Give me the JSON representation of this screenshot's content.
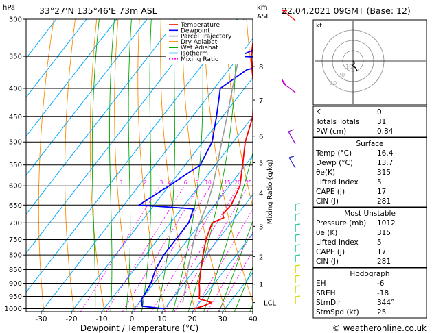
{
  "header": {
    "location": "33°27'N  135°46'E  73m  ASL",
    "datetime": "22.04.2021  09GMT  (Base: 12)",
    "left_unit": "hPa",
    "right_unit_km": "km",
    "right_unit_asl": "ASL"
  },
  "footer": {
    "copyright": "© weatheronline.co.uk"
  },
  "legend": [
    {
      "label": "Temperature",
      "color": "#ff0000",
      "dash": ""
    },
    {
      "label": "Dewpoint",
      "color": "#0000ff",
      "dash": ""
    },
    {
      "label": "Parcel Trajectory",
      "color": "#999999",
      "dash": ""
    },
    {
      "label": "Dry Adiabat",
      "color": "#ff8c00",
      "dash": ""
    },
    {
      "label": "Wet Adiabat",
      "color": "#00aa00",
      "dash": ""
    },
    {
      "label": "Isotherm",
      "color": "#00aaff",
      "dash": ""
    },
    {
      "label": "Mixing Ratio",
      "color": "#ff00ff",
      "dash": "2,2"
    }
  ],
  "chart_data": {
    "type": "line",
    "title": "",
    "xlabel": "Dewpoint / Temperature (°C)",
    "ylabel_left": "hPa",
    "ylabel_right": "Mixing Ratio (g/kg)",
    "xlim": [
      -35,
      40
    ],
    "ylim": [
      1000,
      300
    ],
    "x_ticks": [
      -30,
      -20,
      -10,
      0,
      10,
      20,
      30,
      40
    ],
    "pressure_levels": [
      300,
      350,
      400,
      450,
      500,
      550,
      600,
      650,
      700,
      750,
      800,
      850,
      900,
      950,
      1000
    ],
    "altitude_km_ticks": [
      {
        "label": "8",
        "p": 365
      },
      {
        "label": "7",
        "p": 420
      },
      {
        "label": "6",
        "p": 488
      },
      {
        "label": "5",
        "p": 545
      },
      {
        "label": "4",
        "p": 618
      },
      {
        "label": "3",
        "p": 710
      },
      {
        "label": "2",
        "p": 805
      },
      {
        "label": "1",
        "p": 903
      },
      {
        "label": "LCL",
        "p": 975
      }
    ],
    "mixing_ratio_labels": [
      "1",
      "2",
      "3",
      "4",
      "6",
      "8",
      "10",
      "15",
      "20",
      "25"
    ],
    "series": [
      {
        "name": "Temperature",
        "color": "#ff0000",
        "points": [
          [
            1000,
            20.0
          ],
          [
            990,
            22.0
          ],
          [
            975,
            24.0
          ],
          [
            960,
            19.0
          ],
          [
            925,
            16.8
          ],
          [
            900,
            15.0
          ],
          [
            850,
            12.0
          ],
          [
            800,
            9.0
          ],
          [
            750,
            6.0
          ],
          [
            700,
            3.8
          ],
          [
            685,
            6.3
          ],
          [
            675,
            5.0
          ],
          [
            650,
            5.5
          ],
          [
            600,
            3.5
          ],
          [
            550,
            -1.0
          ],
          [
            500,
            -6.0
          ],
          [
            450,
            -10.0
          ],
          [
            400,
            -17.0
          ],
          [
            350,
            -26.0
          ],
          [
            300,
            -34.0
          ]
        ]
      },
      {
        "name": "Dewpoint",
        "color": "#0000ff",
        "points": [
          [
            1000,
            10.0
          ],
          [
            990,
            2.0
          ],
          [
            960,
            0.0
          ],
          [
            900,
            -1.0
          ],
          [
            850,
            -3.0
          ],
          [
            800,
            -4.0
          ],
          [
            750,
            -4.0
          ],
          [
            700,
            -4.0
          ],
          [
            660,
            -6.0
          ],
          [
            650,
            -25.0
          ],
          [
            600,
            -20.0
          ],
          [
            550,
            -15.0
          ],
          [
            500,
            -17.0
          ],
          [
            450,
            -22.0
          ],
          [
            400,
            -28.0
          ],
          [
            370,
            -24.0
          ],
          [
            355,
            -12.0
          ],
          [
            353,
            -14.0
          ],
          [
            350,
            -30.0
          ],
          [
            330,
            -23.0
          ],
          [
            300,
            -18.0
          ]
        ]
      },
      {
        "name": "Parcel Trajectory",
        "color": "#999999",
        "points": [
          [
            975,
            14.5
          ],
          [
            950,
            13.2
          ],
          [
            900,
            10.8
          ],
          [
            850,
            7.6
          ],
          [
            800,
            5.0
          ],
          [
            750,
            2.0
          ],
          [
            700,
            -0.4
          ],
          [
            650,
            -2.5
          ],
          [
            600,
            -5.5
          ],
          [
            550,
            -9.4
          ],
          [
            500,
            -13.8
          ],
          [
            450,
            -18.5
          ],
          [
            400,
            -24.0
          ],
          [
            350,
            -30.0
          ],
          [
            300,
            -38.0
          ]
        ]
      }
    ]
  },
  "hodograph": {
    "unit_label": "kt",
    "ring_labels": [
      "10",
      "20",
      "30"
    ]
  },
  "indices": {
    "top": [
      {
        "key": "K",
        "value": "0"
      },
      {
        "key": "Totals Totals",
        "value": "31"
      },
      {
        "key": "PW (cm)",
        "value": "0.84"
      }
    ],
    "surface": {
      "title": "Surface",
      "rows": [
        {
          "key": "Temp (°C)",
          "value": "16.4"
        },
        {
          "key": "Dewp (°C)",
          "value": "13.7"
        },
        {
          "key": "θe(K)",
          "value": "315"
        },
        {
          "key": "Lifted Index",
          "value": "5"
        },
        {
          "key": "CAPE (J)",
          "value": "17"
        },
        {
          "key": "CIN (J)",
          "value": "281"
        }
      ]
    },
    "most_unstable": {
      "title": "Most Unstable",
      "rows": [
        {
          "key": "Pressure (mb)",
          "value": "1012"
        },
        {
          "key": "θe (K)",
          "value": "315"
        },
        {
          "key": "Lifted Index",
          "value": "5"
        },
        {
          "key": "CAPE (J)",
          "value": "17"
        },
        {
          "key": "CIN (J)",
          "value": "281"
        }
      ]
    },
    "hodograph": {
      "title": "Hodograph",
      "rows": [
        {
          "key": "EH",
          "value": "-6"
        },
        {
          "key": "SREH",
          "value": "-18"
        },
        {
          "key": "StmDir",
          "value": "344°"
        },
        {
          "key": "StmSpd (kt)",
          "value": "25"
        }
      ]
    }
  },
  "colors": {
    "temperature": "#ff0000",
    "dewpoint": "#0000ff",
    "parcel": "#999999",
    "dry_adiabat": "#ff8c00",
    "wet_adiabat": "#00aa00",
    "isotherm": "#00aaff",
    "mixing_ratio": "#ff00ff"
  }
}
